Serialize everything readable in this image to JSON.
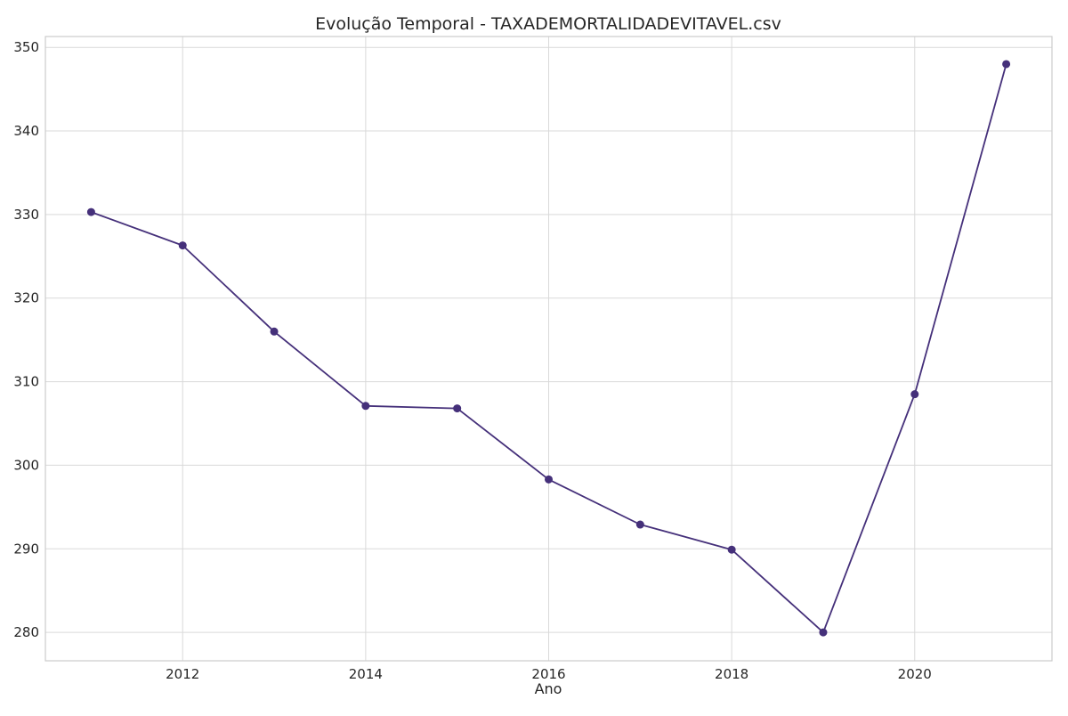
{
  "chart_data": {
    "type": "line",
    "title": "Evolução Temporal - TAXADEMORTALIDADEVITAVEL.csv",
    "xlabel": "Ano",
    "ylabel": "",
    "x": [
      2011,
      2012,
      2013,
      2014,
      2015,
      2016,
      2017,
      2018,
      2019,
      2020,
      2021
    ],
    "series": [
      {
        "values": [
          330.3,
          326.3,
          316.0,
          307.1,
          306.8,
          298.3,
          292.9,
          289.9,
          280.0,
          308.5,
          348.0
        ],
        "color": "#45307a"
      }
    ],
    "xlim": [
      2010.5,
      2021.5
    ],
    "ylim": [
      276.6,
      351.3
    ],
    "x_ticks": [
      2012,
      2014,
      2016,
      2018,
      2020
    ],
    "y_ticks": [
      280,
      290,
      300,
      310,
      320,
      330,
      340,
      350
    ],
    "grid": true,
    "legend": "none"
  }
}
